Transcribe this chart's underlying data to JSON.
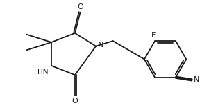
{
  "bg_color": "#ffffff",
  "line_color": "#1a1a1a",
  "lw": 1.3,
  "F_label": "F",
  "N_label": "N",
  "HN_label": "HN",
  "O_label1": "O",
  "O_label2": "O",
  "figsize": [
    3.14,
    1.56
  ],
  "dpi": 100
}
